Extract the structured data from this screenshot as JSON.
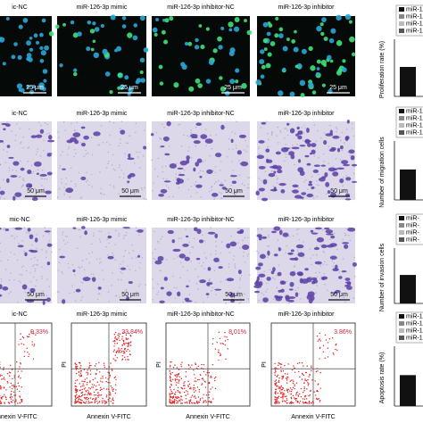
{
  "rows": [
    {
      "kind": "fluorescence",
      "scale": "25 μm",
      "columns": [
        {
          "label": "ic-NC"
        },
        {
          "label": "miR-126-3p mimic"
        },
        {
          "label": "miR-126-3p inhibitor-NC"
        },
        {
          "label": "miR-126-3p inhibitor"
        }
      ]
    },
    {
      "kind": "stain",
      "scale": "50 μm",
      "columns": [
        {
          "label": "ic-NC"
        },
        {
          "label": "miR-126-3p mimic"
        },
        {
          "label": "miR-126-3p inhibitor-NC"
        },
        {
          "label": "miR-126-3p inhibitor"
        }
      ]
    },
    {
      "kind": "stain",
      "scale": "50 μm",
      "columns": [
        {
          "label": "mic-NC"
        },
        {
          "label": "miR-126-3p mimic"
        },
        {
          "label": "miR-126-3p inhibitor-NC"
        },
        {
          "label": "miR-126-3p inhibitor"
        }
      ]
    },
    {
      "kind": "flow",
      "x_axis": "Annexin V-FITC",
      "y_axis": "PI",
      "columns": [
        {
          "label": "ic-NC",
          "percent": "9.33%"
        },
        {
          "label": "miR-126-3p mimic",
          "percent": "23.84%"
        },
        {
          "label": "miR-126-3p inhibitor-NC",
          "percent": "8.01%"
        },
        {
          "label": "miR-126-3p inhibitor",
          "percent": "3.86%"
        }
      ]
    }
  ],
  "charts": [
    {
      "y_label": "Proliferation rate (%)",
      "legend": [
        "miR-126",
        "miR-126",
        "miR-126",
        "miR-126"
      ]
    },
    {
      "y_label": "Number of migration cells",
      "legend": [
        "miR-1",
        "miR-1",
        "miR-1",
        "miR-1"
      ]
    },
    {
      "y_label": "Number of invasion cells",
      "legend": [
        "miR-",
        "miR-",
        "miR-",
        "miR-"
      ]
    },
    {
      "y_label": "Apoptosis rate (%)",
      "legend": [
        "miR-1",
        "miR-1",
        "miR-1",
        "miR-1"
      ]
    }
  ]
}
